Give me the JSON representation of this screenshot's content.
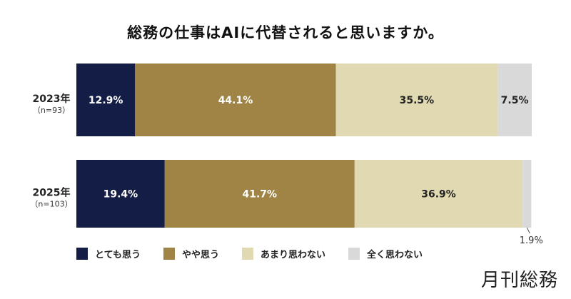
{
  "chart_data": {
    "type": "bar",
    "orientation": "horizontal-stacked-100",
    "title": "総務の仕事はAIに代替されると思いますか。",
    "categories": [
      {
        "label": "2023年",
        "sub": "（n=93）"
      },
      {
        "label": "2025年",
        "sub": "（n=103）"
      }
    ],
    "series": [
      {
        "name": "とても思う",
        "color": "#141d45",
        "values": [
          12.9,
          19.4
        ],
        "labels": [
          "12.9%",
          "19.4%"
        ]
      },
      {
        "name": "やや思う",
        "color": "#a08445",
        "values": [
          44.1,
          41.7
        ],
        "labels": [
          "44.1%",
          "41.7%"
        ]
      },
      {
        "name": "あまり思わない",
        "color": "#e0d9b2",
        "values": [
          35.5,
          36.9
        ],
        "labels": [
          "35.5%",
          "36.9%"
        ]
      },
      {
        "name": "全く思わない",
        "color": "#d9d9d9",
        "values": [
          7.5,
          1.9
        ],
        "labels": [
          "7.5%",
          "1.9%"
        ]
      }
    ],
    "legend": "bottom-left",
    "grid": false
  },
  "brand": "月刊総務"
}
